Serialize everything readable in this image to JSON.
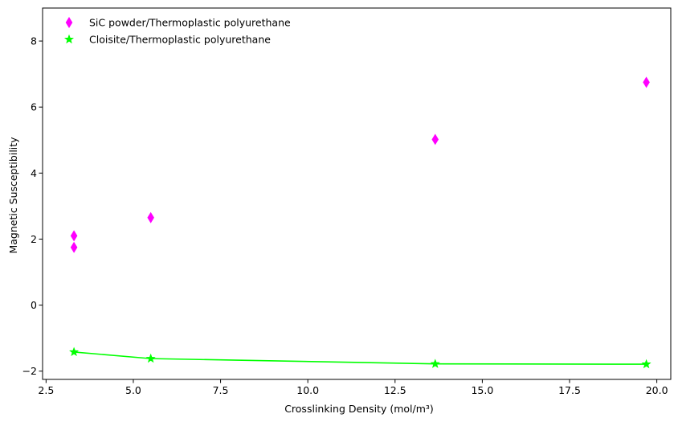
{
  "chart_data": {
    "type": "scatter",
    "title": "",
    "xlabel": "Crosslinking Density (mol/m³)",
    "ylabel": "Magnetic Susceptibility",
    "xlim": [
      2.4,
      20.4
    ],
    "ylim": [
      -2.25,
      9.0
    ],
    "xticks": [
      2.5,
      5.0,
      7.5,
      10.0,
      12.5,
      15.0,
      17.5,
      20.0
    ],
    "xtick_labels": [
      "2.5",
      "5.0",
      "7.5",
      "10.0",
      "12.5",
      "15.0",
      "17.5",
      "20.0"
    ],
    "yticks": [
      -2,
      0,
      2,
      4,
      6,
      8
    ],
    "ytick_labels": [
      "−2",
      "0",
      "2",
      "4",
      "6",
      "8"
    ],
    "grid": false,
    "legend_position": "top-left",
    "series": [
      {
        "name": "SiC powder/Thermoplastic polyurethane",
        "marker": "thin-diamond",
        "color": "#ff00ff",
        "line": false,
        "x": [
          3.3,
          3.3,
          5.5,
          13.65,
          19.7
        ],
        "y": [
          2.1,
          1.75,
          2.65,
          5.02,
          6.75
        ]
      },
      {
        "name": "Cloisite/Thermoplastic polyurethane",
        "marker": "star",
        "color": "#00ff00",
        "line": true,
        "x": [
          3.3,
          5.5,
          13.65,
          19.7
        ],
        "y": [
          -1.42,
          -1.62,
          -1.78,
          -1.79
        ]
      }
    ]
  }
}
